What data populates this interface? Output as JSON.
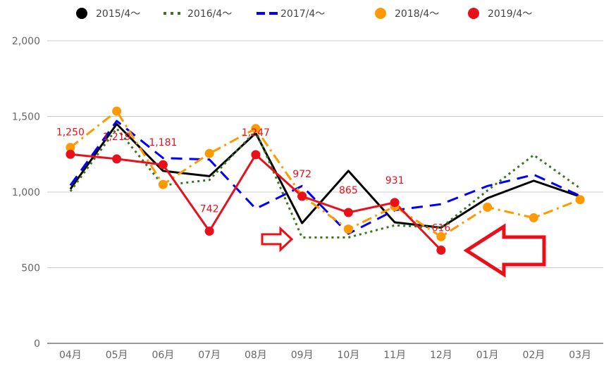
{
  "chart_data": {
    "type": "line",
    "title": "",
    "xlabel": "",
    "ylabel": "",
    "ylim": [
      0,
      2000
    ],
    "y_ticks": [
      0,
      500,
      1000,
      1500,
      2000
    ],
    "y_tick_labels": [
      "0",
      "500",
      "1,000",
      "1,500",
      "2,000"
    ],
    "grid": true,
    "legend_position": "top",
    "categories": [
      "04月",
      "05月",
      "06月",
      "07月",
      "08月",
      "09月",
      "10月",
      "11月",
      "12月",
      "01月",
      "02月",
      "03月"
    ],
    "series": [
      {
        "name": "2015/4～",
        "color": "#000000",
        "line_style": "solid",
        "markers": false,
        "values": [
          1020,
          1450,
          1140,
          1105,
          1390,
          795,
          1140,
          800,
          765,
          960,
          1075,
          970
        ]
      },
      {
        "name": "2016/4～",
        "color": "#38761d",
        "line_style": "dotted",
        "markers": false,
        "values": [
          1005,
          1420,
          1045,
          1080,
          1405,
          700,
          700,
          780,
          765,
          1010,
          1245,
          1025
        ]
      },
      {
        "name": "2017/4～",
        "color": "#0000ff",
        "line_style": "dashed",
        "markers": false,
        "values": [
          1045,
          1470,
          1225,
          1215,
          890,
          1040,
          725,
          880,
          920,
          1040,
          1115,
          975
        ]
      },
      {
        "name": "2018/4～",
        "color": "#ff9900",
        "line_style": "dashdot",
        "markers": true,
        "values": [
          1295,
          1535,
          1050,
          1255,
          1420,
          975,
          755,
          905,
          705,
          900,
          830,
          950
        ]
      },
      {
        "name": "2019/4～",
        "color": "#e8101b",
        "line_style": "solid",
        "markers": true,
        "values": [
          1250,
          1219,
          1181,
          742,
          1247,
          972,
          865,
          931,
          616,
          null,
          null,
          null
        ],
        "data_labels": [
          "1,250",
          "1,219",
          "1,181",
          "742",
          "1,247",
          "972",
          "865",
          "931",
          "616",
          null,
          null,
          null
        ]
      }
    ]
  }
}
